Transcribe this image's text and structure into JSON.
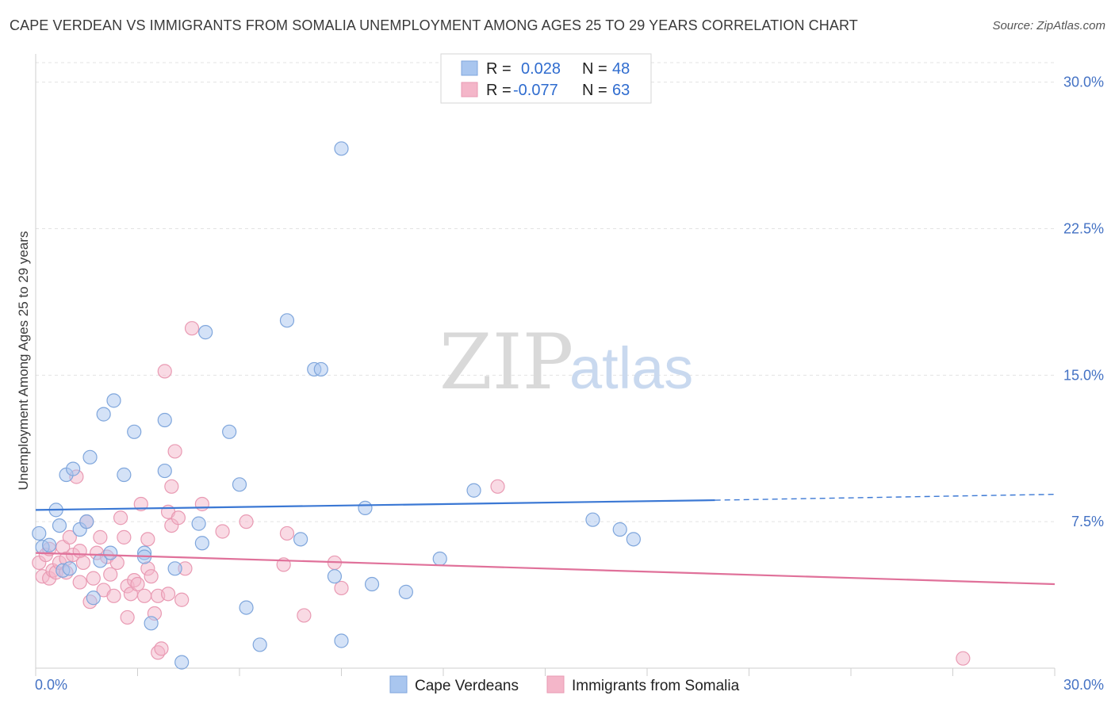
{
  "title": "CAPE VERDEAN VS IMMIGRANTS FROM SOMALIA UNEMPLOYMENT AMONG AGES 25 TO 29 YEARS CORRELATION CHART",
  "source": "Source: ZipAtlas.com",
  "watermark": {
    "zip": "ZIP",
    "atlas": "atlas"
  },
  "colors": {
    "blue_fill": "#a9c6ef",
    "blue_stroke": "#7fa6dc",
    "blue_line": "#3b78d4",
    "pink_fill": "#f4b6c9",
    "pink_stroke": "#e99ab3",
    "pink_line": "#e0719a",
    "axis_text": "#4472c4",
    "grid": "#e3e3e3"
  },
  "legend": {
    "rows": [
      {
        "r_label": "R =",
        "r_value": "0.028",
        "n_label": "N =",
        "n_value": "48"
      },
      {
        "r_label": "R =",
        "r_value": "-0.077",
        "n_label": "N =",
        "n_value": "63"
      }
    ]
  },
  "chart_data": {
    "type": "scatter",
    "title": "CAPE VERDEAN VS IMMIGRANTS FROM SOMALIA UNEMPLOYMENT AMONG AGES 25 TO 29 YEARS CORRELATION CHART",
    "xlabel": "",
    "ylabel": "Unemployment Among Ages 25 to 29 years",
    "xlim": [
      0,
      30
    ],
    "ylim": [
      0,
      31
    ],
    "x_tick_labels": [
      "0.0%",
      "30.0%"
    ],
    "y_ticks": [
      {
        "value": 7.5,
        "label": "7.5%"
      },
      {
        "value": 15,
        "label": "15.0%"
      },
      {
        "value": 22.5,
        "label": "22.5%"
      },
      {
        "value": 30,
        "label": "30.0%"
      }
    ],
    "legend_position": "top-center",
    "series": [
      {
        "name": "Cape Verdeans",
        "color": "blue",
        "trend": {
          "x0": 0,
          "y0": 8.1,
          "x1": 20,
          "y1": 8.6,
          "dash_x1": 30,
          "dash_y1": 8.9
        },
        "points": [
          [
            0.1,
            6.9
          ],
          [
            0.2,
            6.2
          ],
          [
            0.4,
            6.3
          ],
          [
            0.6,
            8.1
          ],
          [
            0.7,
            7.3
          ],
          [
            0.8,
            5.0
          ],
          [
            0.9,
            9.9
          ],
          [
            1.0,
            5.1
          ],
          [
            1.1,
            10.2
          ],
          [
            1.3,
            7.1
          ],
          [
            1.5,
            7.5
          ],
          [
            1.6,
            10.8
          ],
          [
            1.7,
            3.6
          ],
          [
            1.9,
            5.5
          ],
          [
            2.0,
            13.0
          ],
          [
            2.2,
            5.9
          ],
          [
            2.3,
            13.7
          ],
          [
            2.6,
            9.9
          ],
          [
            2.9,
            12.1
          ],
          [
            3.2,
            5.9
          ],
          [
            3.2,
            5.7
          ],
          [
            3.4,
            2.3
          ],
          [
            3.8,
            12.7
          ],
          [
            3.8,
            10.1
          ],
          [
            4.1,
            5.1
          ],
          [
            4.3,
            0.3
          ],
          [
            4.8,
            7.4
          ],
          [
            4.9,
            6.4
          ],
          [
            5.0,
            17.2
          ],
          [
            5.7,
            12.1
          ],
          [
            6.0,
            9.4
          ],
          [
            6.2,
            3.1
          ],
          [
            6.6,
            1.2
          ],
          [
            7.4,
            17.8
          ],
          [
            7.8,
            6.6
          ],
          [
            8.2,
            15.3
          ],
          [
            8.4,
            15.3
          ],
          [
            8.8,
            4.7
          ],
          [
            9.0,
            26.6
          ],
          [
            9.0,
            1.4
          ],
          [
            9.7,
            8.2
          ],
          [
            9.9,
            4.3
          ],
          [
            10.9,
            3.9
          ],
          [
            11.9,
            5.6
          ],
          [
            12.9,
            9.1
          ],
          [
            16.4,
            7.6
          ],
          [
            17.2,
            7.1
          ],
          [
            17.6,
            6.6
          ]
        ]
      },
      {
        "name": "Immigrants from Somalia",
        "color": "pink",
        "trend": {
          "x0": 0,
          "y0": 5.9,
          "x1": 30,
          "y1": 4.3
        },
        "points": [
          [
            0.1,
            5.4
          ],
          [
            0.2,
            4.7
          ],
          [
            0.3,
            5.8
          ],
          [
            0.4,
            4.6
          ],
          [
            0.4,
            6.1
          ],
          [
            0.5,
            5.0
          ],
          [
            0.6,
            4.9
          ],
          [
            0.7,
            5.4
          ],
          [
            0.8,
            6.2
          ],
          [
            0.9,
            5.6
          ],
          [
            0.9,
            4.9
          ],
          [
            1.0,
            6.7
          ],
          [
            1.1,
            5.8
          ],
          [
            1.2,
            9.8
          ],
          [
            1.3,
            6.0
          ],
          [
            1.3,
            4.4
          ],
          [
            1.4,
            5.4
          ],
          [
            1.5,
            7.5
          ],
          [
            1.6,
            3.4
          ],
          [
            1.7,
            4.6
          ],
          [
            1.8,
            5.9
          ],
          [
            1.9,
            6.7
          ],
          [
            2.0,
            4.0
          ],
          [
            2.1,
            5.7
          ],
          [
            2.2,
            4.8
          ],
          [
            2.3,
            3.7
          ],
          [
            2.4,
            5.4
          ],
          [
            2.5,
            7.7
          ],
          [
            2.6,
            6.7
          ],
          [
            2.7,
            4.2
          ],
          [
            2.7,
            2.6
          ],
          [
            2.8,
            3.8
          ],
          [
            2.9,
            4.5
          ],
          [
            3.0,
            4.3
          ],
          [
            3.1,
            8.4
          ],
          [
            3.2,
            3.7
          ],
          [
            3.3,
            6.6
          ],
          [
            3.3,
            5.1
          ],
          [
            3.4,
            4.7
          ],
          [
            3.5,
            2.8
          ],
          [
            3.6,
            0.8
          ],
          [
            3.6,
            3.7
          ],
          [
            3.7,
            1.0
          ],
          [
            3.8,
            15.2
          ],
          [
            3.9,
            3.8
          ],
          [
            3.9,
            8.0
          ],
          [
            4.0,
            9.3
          ],
          [
            4.0,
            7.3
          ],
          [
            4.1,
            11.1
          ],
          [
            4.2,
            7.7
          ],
          [
            4.3,
            3.5
          ],
          [
            4.4,
            5.1
          ],
          [
            4.6,
            17.4
          ],
          [
            4.9,
            8.4
          ],
          [
            5.5,
            7.0
          ],
          [
            6.2,
            7.5
          ],
          [
            7.3,
            5.3
          ],
          [
            7.4,
            6.9
          ],
          [
            7.9,
            2.7
          ],
          [
            8.8,
            5.4
          ],
          [
            9.0,
            4.1
          ],
          [
            13.6,
            9.3
          ],
          [
            27.3,
            0.5
          ]
        ]
      }
    ]
  },
  "bottom_legend": [
    {
      "label": "Cape Verdeans",
      "color": "blue"
    },
    {
      "label": "Immigrants from Somalia",
      "color": "pink"
    }
  ]
}
